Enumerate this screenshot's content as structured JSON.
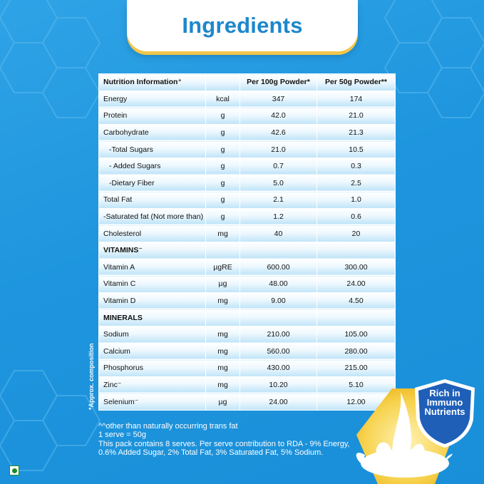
{
  "header": {
    "title": "Ingredients"
  },
  "table": {
    "headers": [
      "Nutrition Information⁺",
      "",
      "Per 100g Powder*",
      "Per 50g Powder**"
    ],
    "rows": [
      {
        "name": "Energy",
        "unit": "kcal",
        "v100": "347",
        "v50": "174",
        "indent": false,
        "section": false
      },
      {
        "name": "Protein",
        "unit": "g",
        "v100": "42.0",
        "v50": "21.0",
        "indent": false,
        "section": false
      },
      {
        "name": "Carbohydrate",
        "unit": "g",
        "v100": "42.6",
        "v50": "21.3",
        "indent": false,
        "section": false
      },
      {
        "name": "-Total Sugars",
        "unit": "g",
        "v100": "21.0",
        "v50": "10.5",
        "indent": true,
        "section": false
      },
      {
        "name": "- Added Sugars",
        "unit": "g",
        "v100": "0.7",
        "v50": "0.3",
        "indent": true,
        "section": false
      },
      {
        "name": "-Dietary Fiber",
        "unit": "g",
        "v100": "5.0",
        "v50": "2.5",
        "indent": true,
        "section": false
      },
      {
        "name": "Total Fat",
        "unit": "g",
        "v100": "2.1",
        "v50": "1.0",
        "indent": false,
        "section": false
      },
      {
        "name": "-Saturated fat (Not more than)",
        "unit": "g",
        "v100": "1.2",
        "v50": "0.6",
        "indent": false,
        "section": false
      },
      {
        "name": "Cholesterol",
        "unit": "mg",
        "v100": "40",
        "v50": "20",
        "indent": false,
        "section": false
      },
      {
        "name": "VITAMINS⁻",
        "unit": "",
        "v100": "",
        "v50": "",
        "indent": false,
        "section": true
      },
      {
        "name": "Vitamin A",
        "unit": "µgRE",
        "v100": "600.00",
        "v50": "300.00",
        "indent": false,
        "section": false
      },
      {
        "name": "Vitamin C",
        "unit": "µg",
        "v100": "48.00",
        "v50": "24.00",
        "indent": false,
        "section": false
      },
      {
        "name": "Vitamin D",
        "unit": "mg",
        "v100": "9.00",
        "v50": "4.50",
        "indent": false,
        "section": false
      },
      {
        "name": "MINERALS",
        "unit": "",
        "v100": "",
        "v50": "",
        "indent": false,
        "section": true
      },
      {
        "name": "Sodium",
        "unit": "mg",
        "v100": "210.00",
        "v50": "105.00",
        "indent": false,
        "section": false
      },
      {
        "name": "Calcium",
        "unit": "mg",
        "v100": "560.00",
        "v50": "280.00",
        "indent": false,
        "section": false
      },
      {
        "name": "Phosphorus",
        "unit": "mg",
        "v100": "430.00",
        "v50": "215.00",
        "indent": false,
        "section": false
      },
      {
        "name": "Zinc⁻",
        "unit": "mg",
        "v100": "10.20",
        "v50": "5.10",
        "indent": false,
        "section": false
      },
      {
        "name": "Selenium⁻",
        "unit": "µg",
        "v100": "24.00",
        "v50": "12.00",
        "indent": false,
        "section": false
      }
    ]
  },
  "side_note": "*Approx. composition",
  "footnotes": [
    "^^other than naturally occurring trans fat",
    "1 serve = 50g",
    "This pack contains 8 serves. Per serve contribution to RDA - 9% Energy,",
    "0.6% Added Sugar, 2% Total Fat, 3% Saturated Fat, 5% Sodium."
  ],
  "badge": {
    "lines": [
      "Rich in",
      "Immuno",
      "Nutrients"
    ]
  },
  "icons": {
    "veg": "veg-mark-icon",
    "milk": "milk-splash-icon",
    "shield": "shield-badge-icon"
  },
  "colors": {
    "background": "#1e95de",
    "title": "#1d87cc",
    "accent": "#f3c64a",
    "veg": "#1a8a2e"
  }
}
